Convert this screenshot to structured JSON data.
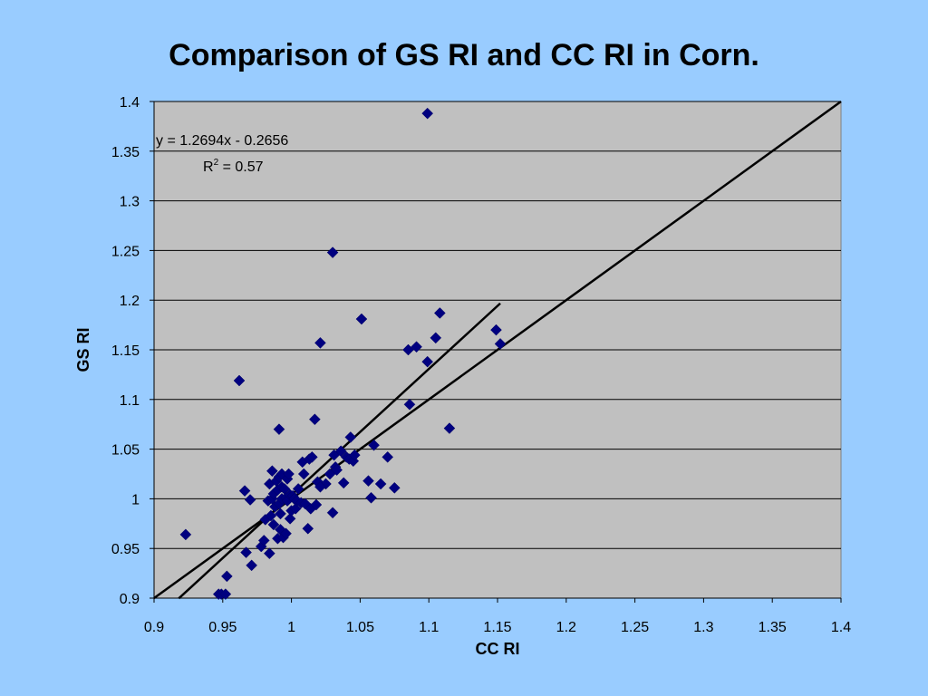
{
  "title": "Comparison of GS RI and CC RI in Corn.",
  "chart_data": {
    "type": "scatter",
    "title": "Comparison of GS RI and CC RI in Corn.",
    "xlabel": "CC RI",
    "ylabel": "GS RI",
    "xlim": [
      0.9,
      1.4
    ],
    "ylim": [
      0.9,
      1.4
    ],
    "xticks": [
      "0.9",
      "0.95",
      "1",
      "1.05",
      "1.1",
      "1.15",
      "1.2",
      "1.25",
      "1.3",
      "1.35",
      "1.4"
    ],
    "yticks": [
      "0.9",
      "0.95",
      "1",
      "1.05",
      "1.1",
      "1.15",
      "1.2",
      "1.25",
      "1.3",
      "1.35",
      "1.4"
    ],
    "grid": "horizontal",
    "legend": "none",
    "annotations": {
      "equation": "y = 1.2694x - 0.2656",
      "r2_prefix": "R",
      "r2_sup": "2",
      "r2_suffix": " = 0.57"
    },
    "lines": [
      {
        "name": "",
        "kind": "one-to-one",
        "x": [
          0.9,
          1.4
        ],
        "y": [
          0.9,
          1.4
        ]
      },
      {
        "name": "",
        "kind": "trendline",
        "slope": 1.2694,
        "intercept": -0.2656,
        "x": [
          0.918,
          1.152
        ]
      }
    ],
    "series": [
      {
        "name": "",
        "x": [
          0.923,
          0.947,
          0.949,
          0.952,
          0.953,
          0.962,
          0.966,
          0.967,
          0.97,
          0.971,
          0.978,
          0.98,
          0.981,
          0.983,
          0.984,
          0.984,
          0.985,
          0.986,
          0.986,
          0.987,
          0.987,
          0.988,
          0.989,
          0.99,
          0.99,
          0.991,
          0.991,
          0.991,
          0.992,
          0.992,
          0.993,
          0.993,
          0.993,
          0.994,
          0.995,
          0.996,
          0.996,
          0.997,
          0.997,
          0.998,
          0.999,
          0.999,
          1.0,
          1.001,
          1.002,
          1.003,
          1.004,
          1.005,
          1.007,
          1.008,
          1.009,
          1.01,
          1.012,
          1.013,
          1.014,
          1.015,
          1.017,
          1.018,
          1.019,
          1.02,
          1.021,
          1.025,
          1.028,
          1.03,
          1.031,
          1.032,
          1.033,
          1.036,
          1.038,
          1.04,
          1.042,
          1.043,
          1.045,
          1.046,
          1.051,
          1.056,
          1.058,
          1.06,
          1.065,
          1.07,
          1.075,
          1.085,
          1.086,
          1.091,
          1.099,
          1.099,
          1.105,
          1.108,
          1.115,
          1.149,
          1.152,
          1.03,
          1.021
        ],
        "y": [
          0.964,
          0.904,
          0.904,
          0.904,
          0.922,
          1.119,
          1.008,
          0.946,
          0.999,
          0.933,
          0.952,
          0.958,
          0.979,
          0.998,
          0.945,
          1.015,
          0.983,
          1.0,
          1.028,
          0.974,
          1.005,
          0.992,
          1.018,
          0.96,
          1.009,
          0.995,
          1.022,
          1.07,
          0.969,
          0.985,
          1.0,
          1.012,
          1.025,
          0.961,
          1.01,
          0.965,
          1.001,
          0.998,
          1.02,
          1.025,
          1.004,
          0.98,
          0.988,
          1.003,
          1.0,
          0.99,
          0.998,
          1.01,
          0.996,
          1.037,
          1.025,
          0.995,
          0.97,
          1.04,
          0.99,
          1.042,
          1.08,
          0.994,
          1.017,
          1.016,
          1.157,
          1.015,
          1.025,
          0.986,
          1.044,
          1.032,
          1.029,
          1.048,
          1.016,
          1.042,
          1.04,
          1.062,
          1.038,
          1.044,
          1.181,
          1.018,
          1.001,
          1.054,
          1.015,
          1.042,
          1.011,
          1.15,
          1.095,
          1.153,
          1.138,
          1.388,
          1.162,
          1.187,
          1.071,
          1.17,
          1.156,
          1.248,
          1.012
        ]
      }
    ]
  }
}
